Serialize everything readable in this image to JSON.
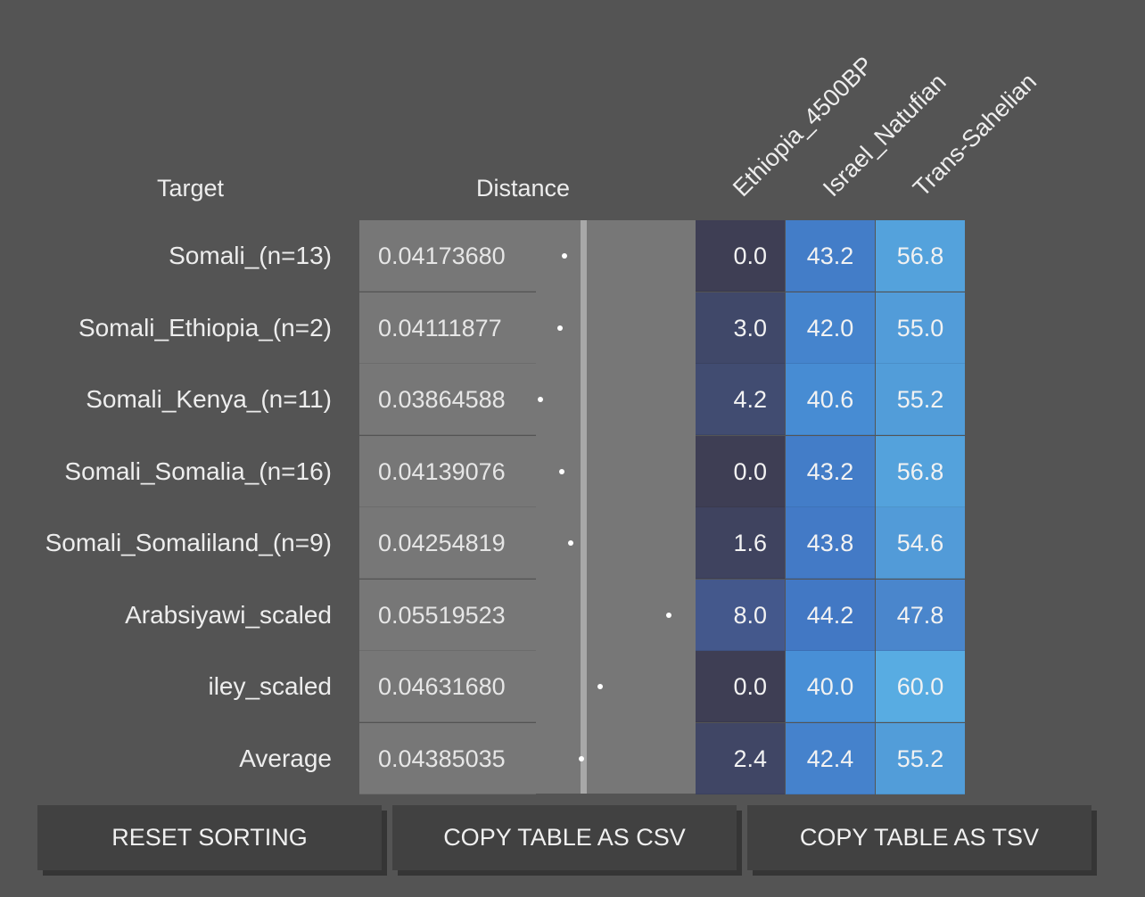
{
  "headers": {
    "target": "Target",
    "distance": "Distance",
    "columns": [
      "Ethiopia_4500BP",
      "Israel_Natufian",
      "Trans-Sahelian"
    ]
  },
  "rows": [
    {
      "target": "Somali_(n=13)",
      "distance": "0.04173680",
      "values": [
        "0.0",
        "43.2",
        "56.8"
      ]
    },
    {
      "target": "Somali_Ethiopia_(n=2)",
      "distance": "0.04111877",
      "values": [
        "3.0",
        "42.0",
        "55.0"
      ]
    },
    {
      "target": "Somali_Kenya_(n=11)",
      "distance": "0.03864588",
      "values": [
        "4.2",
        "40.6",
        "55.2"
      ]
    },
    {
      "target": "Somali_Somalia_(n=16)",
      "distance": "0.04139076",
      "values": [
        "0.0",
        "43.2",
        "56.8"
      ]
    },
    {
      "target": "Somali_Somaliland_(n=9)",
      "distance": "0.04254819",
      "values": [
        "1.6",
        "43.8",
        "54.6"
      ]
    },
    {
      "target": "Arabsiyawi_scaled",
      "distance": "0.05519523",
      "values": [
        "8.0",
        "44.2",
        "47.8"
      ]
    },
    {
      "target": "iley_scaled",
      "distance": "0.04631680",
      "values": [
        "0.0",
        "40.0",
        "60.0"
      ]
    },
    {
      "target": "Average",
      "distance": "0.04385035",
      "values": [
        "2.4",
        "42.4",
        "55.2"
      ]
    }
  ],
  "colors": {
    "background": "#545454",
    "distance_cell": "#777777",
    "button": "#414141"
  },
  "buttons": {
    "reset": "RESET SORTING",
    "copy_csv": "COPY TABLE AS CSV",
    "copy_tsv": "COPY TABLE AS TSV"
  }
}
